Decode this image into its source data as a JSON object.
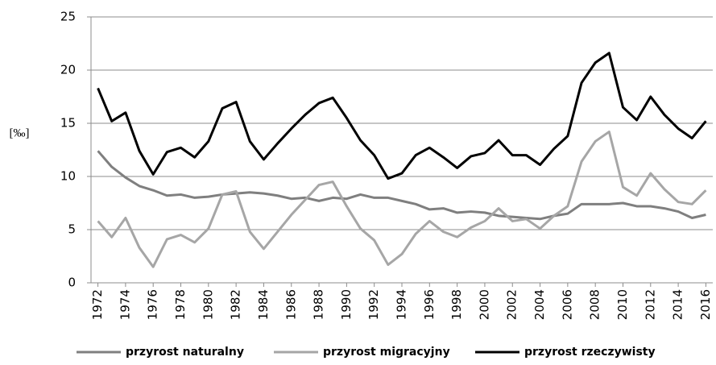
{
  "chart_data": {
    "type": "line",
    "y_label": "[‰]",
    "x": [
      1972,
      1973,
      1974,
      1975,
      1976,
      1977,
      1978,
      1979,
      1980,
      1981,
      1982,
      1983,
      1984,
      1985,
      1986,
      1987,
      1988,
      1989,
      1990,
      1991,
      1992,
      1993,
      1994,
      1995,
      1996,
      1997,
      1998,
      1999,
      2000,
      2001,
      2002,
      2003,
      2004,
      2005,
      2006,
      2007,
      2008,
      2009,
      2010,
      2011,
      2012,
      2013,
      2014,
      2015,
      2016
    ],
    "xlim": [
      1971.5,
      2016.5
    ],
    "xticks": [
      1972,
      1974,
      1976,
      1978,
      1980,
      1982,
      1984,
      1986,
      1988,
      1990,
      1992,
      1994,
      1996,
      1998,
      2000,
      2002,
      2004,
      2006,
      2008,
      2010,
      2012,
      2014,
      2016
    ],
    "ylim": [
      0,
      25
    ],
    "yticks": [
      0,
      5,
      10,
      15,
      20,
      25
    ],
    "grid": true,
    "legend": "bottom",
    "series": [
      {
        "name": "przyrost naturalny",
        "color": "#7f7f7f",
        "values": [
          12.4,
          10.9,
          9.9,
          9.1,
          8.7,
          8.2,
          8.3,
          8.0,
          8.1,
          8.3,
          8.4,
          8.5,
          8.4,
          8.2,
          7.9,
          8.0,
          7.7,
          8.0,
          7.9,
          8.3,
          8.0,
          8.0,
          7.7,
          7.4,
          6.9,
          7.0,
          6.6,
          6.7,
          6.6,
          6.3,
          6.2,
          6.1,
          6.0,
          6.3,
          6.5,
          7.4,
          7.4,
          7.4,
          7.5,
          7.2,
          7.2,
          7.0,
          6.7,
          6.1,
          6.4
        ]
      },
      {
        "name": "przyrost migracyjny",
        "color": "#a6a6a6",
        "values": [
          5.8,
          4.3,
          6.1,
          3.3,
          1.5,
          4.1,
          4.5,
          3.8,
          5.1,
          8.3,
          8.6,
          4.8,
          3.2,
          4.8,
          6.4,
          7.8,
          9.2,
          9.5,
          7.2,
          5.1,
          4.0,
          1.7,
          2.7,
          4.6,
          5.8,
          4.8,
          4.3,
          5.2,
          5.8,
          7.0,
          5.8,
          6.0,
          5.1,
          6.3,
          7.2,
          11.4,
          13.3,
          14.2,
          9.0,
          8.2,
          10.3,
          8.8,
          7.6,
          7.4,
          8.7
        ]
      },
      {
        "name": "przyrost rzeczywisty",
        "color": "#000000",
        "values": [
          18.3,
          15.2,
          16.0,
          12.4,
          10.2,
          12.3,
          12.7,
          11.8,
          13.3,
          16.4,
          17.0,
          13.3,
          11.6,
          13.1,
          14.5,
          15.8,
          16.9,
          17.4,
          15.5,
          13.4,
          12.0,
          9.8,
          10.3,
          12.0,
          12.7,
          11.8,
          10.8,
          11.9,
          12.2,
          13.4,
          12.0,
          12.0,
          11.1,
          12.6,
          13.8,
          18.8,
          20.7,
          21.6,
          16.5,
          15.3,
          17.5,
          15.8,
          14.5,
          13.6,
          15.2
        ]
      }
    ]
  }
}
